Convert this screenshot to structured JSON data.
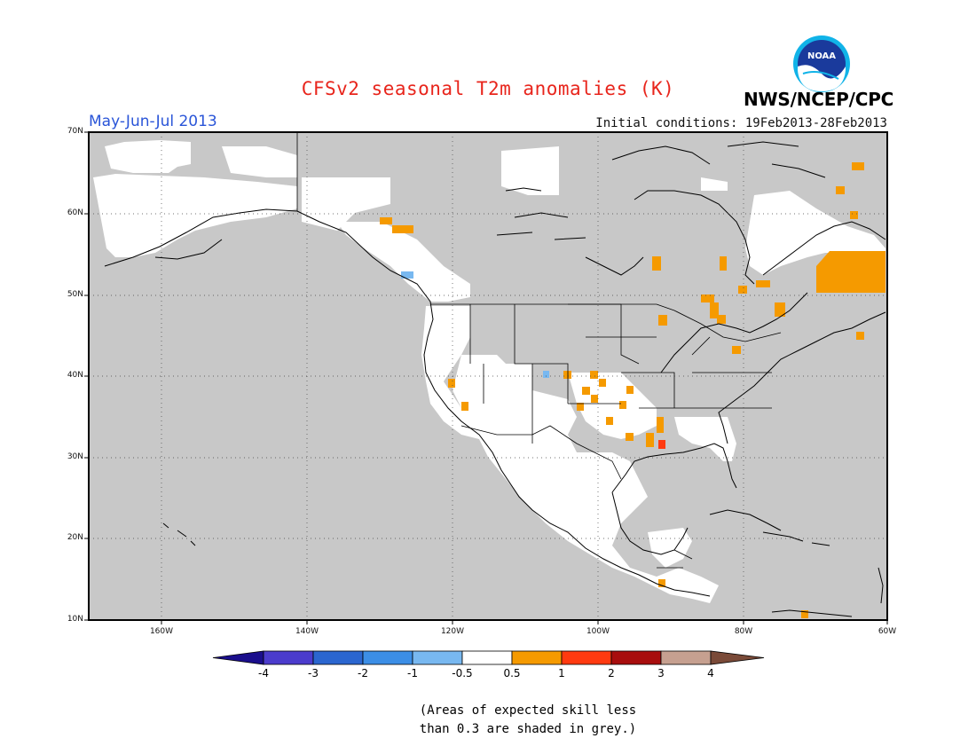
{
  "header": {
    "title": "CFSv2 seasonal T2m anomalies (K)",
    "season": "May-Jun-Jul 2013",
    "initial_conditions": "Initial conditions: 19Feb2013-28Feb2013",
    "agency": "NWS/NCEP/CPC",
    "logo_text": "NOAA"
  },
  "colors": {
    "title": "#e8251c",
    "season": "#2a55d8",
    "land_skill_low": "#c8c8c8",
    "ocean": "#c8c8c8",
    "neutral": "#ffffff"
  },
  "map": {
    "projection": "cylindrical equidistant",
    "lon_range": [
      -170,
      -60
    ],
    "lat_range": [
      10,
      70
    ],
    "lat_ticks": [
      "70N",
      "60N",
      "50N",
      "40N",
      "30N",
      "20N",
      "10N"
    ],
    "lon_ticks": [
      "160W",
      "140W",
      "120W",
      "100W",
      "80W",
      "60W"
    ],
    "grid": "dotted"
  },
  "colorbar": {
    "colors": [
      "#1a0e8c",
      "#4b3ccc",
      "#2b66cf",
      "#3c8ee6",
      "#78b8f0",
      "#ffffff",
      "#f59a00",
      "#ff3a10",
      "#a80e0e",
      "#c6a090",
      "#7a4a38"
    ],
    "labels": [
      "-4",
      "-3",
      "-2",
      "-1",
      "-0.5",
      "0.5",
      "1",
      "2",
      "3",
      "4"
    ]
  },
  "note": "(Areas of expected skill less\nthan 0.3 are shaded in grey.)"
}
